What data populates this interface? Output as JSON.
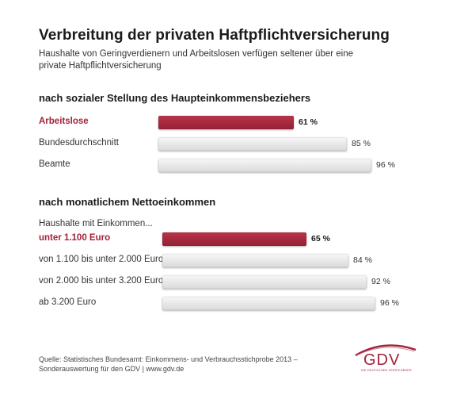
{
  "title": "Verbreitung der privaten Haftpflichtversicherung",
  "subtitle": "Haushalte von Geringverdienern und Arbeitslosen verfügen seltener über eine private Haftpflichtversicherung",
  "source": "Quelle: Statistisches Bundesamt: Einkommens- und Verbrauchsstichprobe 2013 – Sonderauswertung für den GDV  | www.gdv.de",
  "logo": {
    "text": "GDV",
    "sub": "DIE DEUTSCHEN VERSICHERER"
  },
  "colors": {
    "highlight": "#a3213a",
    "bar": "#e2e2e2",
    "text": "#333333"
  },
  "chart_data": [
    {
      "type": "bar",
      "orientation": "horizontal",
      "title": "nach sozialer Stellung des Haupteinkommensbeziehers",
      "categories": [
        "Arbeitslose",
        "Bundesdurchschnitt",
        "Beamte"
      ],
      "values": [
        61,
        85,
        96
      ],
      "value_labels": [
        "61 %",
        "85 %",
        "96 %"
      ],
      "highlight": [
        true,
        false,
        false
      ],
      "unit": "%",
      "xlim": [
        0,
        100
      ]
    },
    {
      "type": "bar",
      "orientation": "horizontal",
      "title": "nach monatlichem Nettoeinkommen",
      "note": "Haushalte mit Einkommen...",
      "categories": [
        "unter 1.100 Euro",
        "von 1.100 bis unter 2.000 Euro",
        "von 2.000 bis unter 3.200 Euro",
        "ab 3.200 Euro"
      ],
      "values": [
        65,
        84,
        92,
        96
      ],
      "value_labels": [
        "65 %",
        "84 %",
        "92 %",
        "96 %"
      ],
      "highlight": [
        true,
        false,
        false,
        false
      ],
      "unit": "%",
      "xlim": [
        0,
        100
      ]
    }
  ]
}
